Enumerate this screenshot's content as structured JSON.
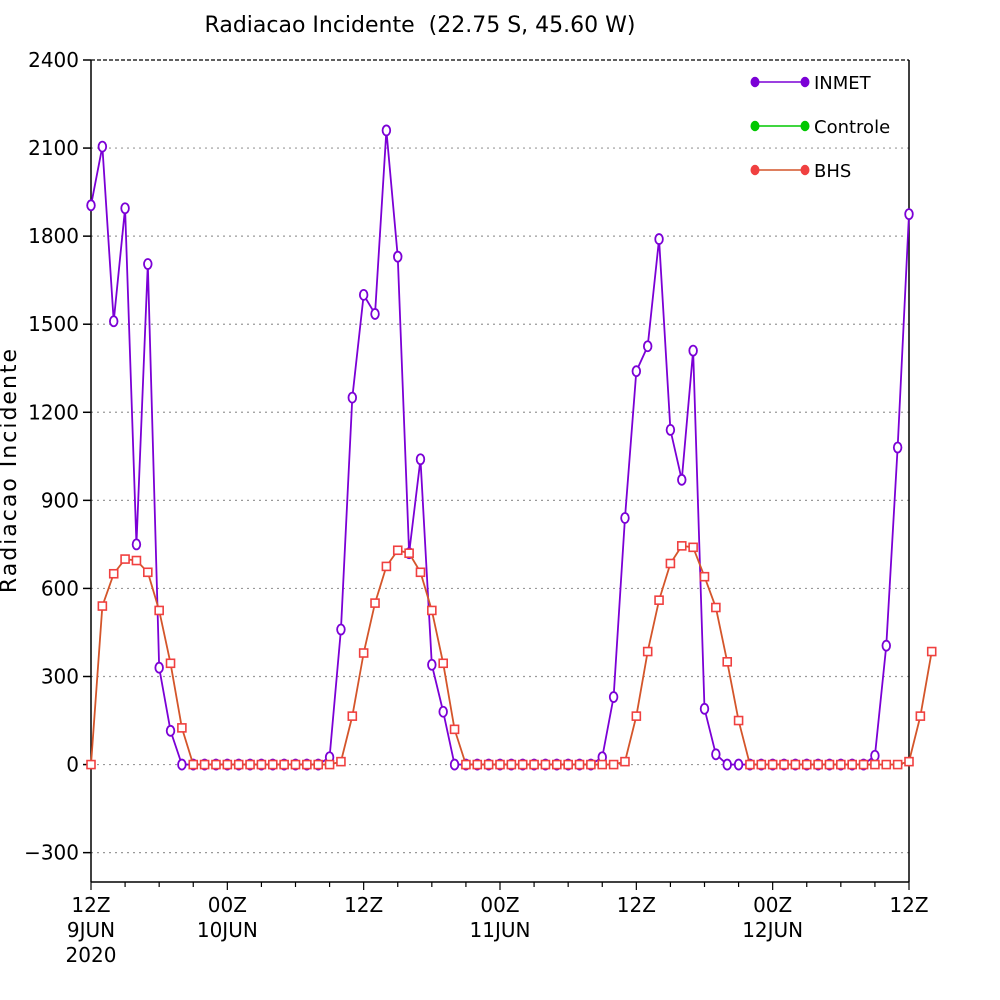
{
  "chart_data": {
    "type": "line",
    "title": "Radiacao Incidente  (22.75 S, 45.60 W)",
    "ylabel": "Radiacao Incidente",
    "ylim": [
      -400,
      2400
    ],
    "yticks": [
      -300,
      0,
      300,
      600,
      900,
      1200,
      1500,
      1800,
      2100,
      2400
    ],
    "grid": "horizontal dotted",
    "legend_position": "top-right",
    "x_start": "12Z 9JUN 2020",
    "x_end": "12Z 12JUN 2020",
    "x_step": "1 hour",
    "xticks": [
      {
        "t": 0,
        "lines": [
          "12Z",
          "9JUN",
          "2020"
        ]
      },
      {
        "t": 12,
        "lines": [
          "00Z",
          "10JUN"
        ]
      },
      {
        "t": 24,
        "lines": [
          "12Z"
        ]
      },
      {
        "t": 36,
        "lines": [
          "00Z",
          "11JUN"
        ]
      },
      {
        "t": 48,
        "lines": [
          "12Z"
        ]
      },
      {
        "t": 60,
        "lines": [
          "00Z",
          "12JUN"
        ]
      },
      {
        "t": 72,
        "lines": [
          "12Z"
        ]
      }
    ],
    "series": [
      {
        "name": "INMET",
        "color": "#7b00d6",
        "marker": "circle",
        "values": [
          1905,
          2105,
          1510,
          1895,
          750,
          1705,
          330,
          115,
          0,
          0,
          0,
          0,
          0,
          0,
          0,
          0,
          0,
          0,
          0,
          0,
          0,
          25,
          460,
          1250,
          1600,
          1535,
          2160,
          1730,
          720,
          1040,
          340,
          180,
          0,
          0,
          0,
          0,
          0,
          0,
          0,
          0,
          0,
          0,
          0,
          0,
          0,
          25,
          230,
          840,
          1340,
          1425,
          1790,
          1140,
          970,
          1410,
          190,
          35,
          0,
          0,
          0,
          0,
          0,
          0,
          0,
          0,
          0,
          0,
          0,
          0,
          0,
          30,
          405,
          1080,
          1875
        ]
      },
      {
        "name": "Controle",
        "color": "#00c800",
        "marker": "circle",
        "values": []
      },
      {
        "name": "BHS",
        "color": "#f04040",
        "line_color": "#d4552a",
        "marker": "square",
        "values": [
          0,
          540,
          650,
          700,
          695,
          655,
          525,
          345,
          125,
          0,
          0,
          0,
          0,
          0,
          0,
          0,
          0,
          0,
          0,
          0,
          0,
          0,
          10,
          165,
          380,
          550,
          675,
          730,
          720,
          655,
          525,
          345,
          120,
          0,
          0,
          0,
          0,
          0,
          0,
          0,
          0,
          0,
          0,
          0,
          0,
          0,
          0,
          10,
          165,
          385,
          560,
          685,
          745,
          740,
          640,
          535,
          350,
          150,
          0,
          0,
          0,
          0,
          0,
          0,
          0,
          0,
          0,
          0,
          0,
          0,
          0,
          0,
          10,
          165,
          385
        ]
      }
    ]
  }
}
